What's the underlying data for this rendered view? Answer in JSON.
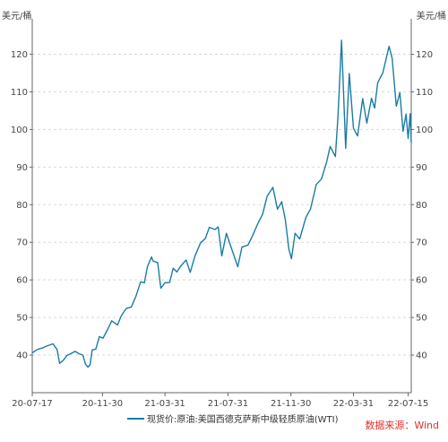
{
  "chart_data": {
    "type": "line",
    "title": "",
    "ylabel_left": "美元/桶",
    "ylabel_right": "美元/桶",
    "ylim": [
      30,
      128
    ],
    "yticks": [
      40,
      50,
      60,
      70,
      80,
      90,
      100,
      110,
      120
    ],
    "xlim": [
      "2020-07-17",
      "2022-07-21"
    ],
    "xticks": [
      "20-07-17",
      "20-11-30",
      "21-03-31",
      "21-07-31",
      "21-11-30",
      "22-03-31",
      "22-07-15"
    ],
    "xtick_dates": [
      "2020-07-17",
      "2020-11-30",
      "2021-03-31",
      "2021-07-31",
      "2021-11-30",
      "2022-03-31",
      "2022-07-15"
    ],
    "grid": true,
    "legend_position": "bottom",
    "line_color": "#1b7ba5",
    "series": [
      {
        "name": "现货价:原油:美国西德克萨斯中级轻质原油(WTI)",
        "points": [
          [
            "2020-07-17",
            40.6
          ],
          [
            "2020-07-27",
            41.5
          ],
          [
            "2020-08-06",
            41.9
          ],
          [
            "2020-08-14",
            42.4
          ],
          [
            "2020-08-26",
            43.0
          ],
          [
            "2020-09-03",
            41.5
          ],
          [
            "2020-09-08",
            37.8
          ],
          [
            "2020-09-15",
            38.6
          ],
          [
            "2020-09-22",
            39.9
          ],
          [
            "2020-09-30",
            40.4
          ],
          [
            "2020-10-08",
            41.0
          ],
          [
            "2020-10-15",
            40.4
          ],
          [
            "2020-10-23",
            40.0
          ],
          [
            "2020-10-28",
            37.6
          ],
          [
            "2020-11-02",
            36.8
          ],
          [
            "2020-11-06",
            37.4
          ],
          [
            "2020-11-10",
            41.4
          ],
          [
            "2020-11-17",
            41.6
          ],
          [
            "2020-11-24",
            44.9
          ],
          [
            "2020-12-01",
            44.5
          ],
          [
            "2020-12-10",
            46.8
          ],
          [
            "2020-12-18",
            49.1
          ],
          [
            "2020-12-29",
            48.0
          ],
          [
            "2021-01-06",
            50.6
          ],
          [
            "2021-01-15",
            52.4
          ],
          [
            "2021-01-25",
            52.8
          ],
          [
            "2021-02-03",
            55.7
          ],
          [
            "2021-02-12",
            59.5
          ],
          [
            "2021-02-19",
            59.2
          ],
          [
            "2021-02-25",
            63.5
          ],
          [
            "2021-03-05",
            66.1
          ],
          [
            "2021-03-08",
            65.0
          ],
          [
            "2021-03-17",
            64.6
          ],
          [
            "2021-03-23",
            57.8
          ],
          [
            "2021-03-31",
            59.2
          ],
          [
            "2021-04-09",
            59.3
          ],
          [
            "2021-04-16",
            63.1
          ],
          [
            "2021-04-23",
            62.1
          ],
          [
            "2021-04-30",
            63.6
          ],
          [
            "2021-05-11",
            65.3
          ],
          [
            "2021-05-19",
            62.0
          ],
          [
            "2021-05-28",
            66.3
          ],
          [
            "2021-06-08",
            69.9
          ],
          [
            "2021-06-17",
            71.0
          ],
          [
            "2021-06-25",
            74.0
          ],
          [
            "2021-07-06",
            73.4
          ],
          [
            "2021-07-12",
            74.1
          ],
          [
            "2021-07-19",
            66.4
          ],
          [
            "2021-07-28",
            72.4
          ],
          [
            "2021-08-05",
            69.1
          ],
          [
            "2021-08-19",
            63.5
          ],
          [
            "2021-08-27",
            68.7
          ],
          [
            "2021-09-08",
            69.3
          ],
          [
            "2021-09-17",
            71.9
          ],
          [
            "2021-09-28",
            75.3
          ],
          [
            "2021-10-06",
            77.4
          ],
          [
            "2021-10-15",
            82.3
          ],
          [
            "2021-10-26",
            84.6
          ],
          [
            "2021-11-04",
            78.8
          ],
          [
            "2021-11-12",
            80.8
          ],
          [
            "2021-11-19",
            76.1
          ],
          [
            "2021-11-26",
            68.2
          ],
          [
            "2021-12-01",
            65.6
          ],
          [
            "2021-12-08",
            72.4
          ],
          [
            "2021-12-17",
            70.9
          ],
          [
            "2021-12-29",
            76.6
          ],
          [
            "2022-01-07",
            78.9
          ],
          [
            "2022-01-18",
            85.4
          ],
          [
            "2022-01-28",
            86.8
          ],
          [
            "2022-02-07",
            91.3
          ],
          [
            "2022-02-14",
            95.5
          ],
          [
            "2022-02-24",
            92.8
          ],
          [
            "2022-03-01",
            103.4
          ],
          [
            "2022-03-08",
            123.7
          ],
          [
            "2022-03-16",
            95.0
          ],
          [
            "2022-03-23",
            114.9
          ],
          [
            "2022-03-31",
            100.3
          ],
          [
            "2022-04-08",
            98.3
          ],
          [
            "2022-04-18",
            108.2
          ],
          [
            "2022-04-26",
            101.7
          ],
          [
            "2022-05-05",
            108.3
          ],
          [
            "2022-05-11",
            105.7
          ],
          [
            "2022-05-17",
            112.4
          ],
          [
            "2022-05-27",
            115.1
          ],
          [
            "2022-06-08",
            122.1
          ],
          [
            "2022-06-14",
            118.9
          ],
          [
            "2022-06-22",
            106.2
          ],
          [
            "2022-06-29",
            109.8
          ],
          [
            "2022-07-05",
            99.5
          ],
          [
            "2022-07-11",
            104.1
          ],
          [
            "2022-07-15",
            97.6
          ],
          [
            "2022-07-19",
            104.2
          ],
          [
            "2022-07-21",
            96.4
          ]
        ]
      }
    ]
  },
  "source_label": "数据来源：Wind",
  "source_color": "#e0302a"
}
